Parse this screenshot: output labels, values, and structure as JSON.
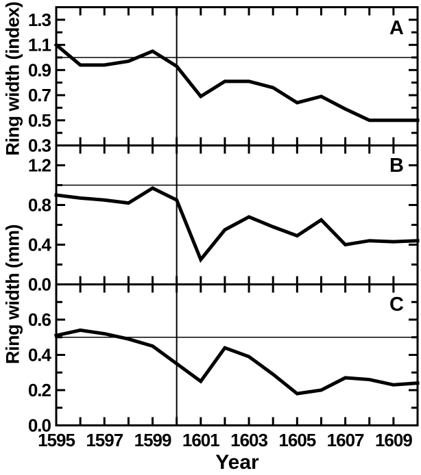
{
  "figure": {
    "background_color": "#ffffff",
    "line_color": "#000000"
  },
  "x_axis": {
    "label": "Year",
    "xlim": [
      1595,
      1610
    ],
    "tick_years": [
      1595,
      1596,
      1597,
      1598,
      1599,
      1600,
      1601,
      1602,
      1603,
      1604,
      1605,
      1606,
      1607,
      1608,
      1609,
      1610
    ],
    "labeled_ticks": [
      1595,
      1597,
      1599,
      1601,
      1603,
      1605,
      1607,
      1609
    ]
  },
  "y_axis_labels": [
    {
      "text": "Ring width (index)",
      "applies_to": "panel A"
    },
    {
      "text": "Ring width (mm)",
      "applies_to": "panels B and C"
    }
  ],
  "chart_data": [
    {
      "type": "line",
      "panel_label": "A",
      "y_unit": "index",
      "x": [
        1595,
        1596,
        1597,
        1598,
        1599,
        1600,
        1601,
        1602,
        1603,
        1604,
        1605,
        1606,
        1607,
        1608,
        1609,
        1610
      ],
      "values": [
        1.1,
        0.94,
        0.94,
        0.97,
        1.05,
        0.93,
        0.69,
        0.81,
        0.81,
        0.76,
        0.64,
        0.69,
        0.59,
        0.5,
        0.5,
        0.5
      ],
      "ylim": [
        0.3,
        1.4
      ],
      "yticks_labeled": [
        1.3,
        1.1,
        0.9,
        0.7,
        0.5,
        0.3
      ],
      "yticks_minor": [
        0.4,
        0.6,
        0.8,
        1.0,
        1.2
      ],
      "reference_hline": 1.0,
      "reference_vline": 1600,
      "grid": false,
      "legend": false
    },
    {
      "type": "line",
      "panel_label": "B",
      "y_unit": "mm",
      "x": [
        1595,
        1596,
        1597,
        1598,
        1599,
        1600,
        1601,
        1602,
        1603,
        1604,
        1605,
        1606,
        1607,
        1608,
        1609,
        1610
      ],
      "values": [
        0.9,
        0.87,
        0.85,
        0.82,
        0.97,
        0.85,
        0.25,
        0.55,
        0.68,
        0.58,
        0.49,
        0.65,
        0.4,
        0.44,
        0.43,
        0.44
      ],
      "ylim": [
        0.0,
        1.4
      ],
      "yticks_labeled": [
        1.2,
        0.8,
        0.4,
        0.0
      ],
      "yticks_minor": [
        0.2,
        0.6,
        1.0
      ],
      "reference_hline": 1.0,
      "reference_vline": 1600,
      "grid": false,
      "legend": false
    },
    {
      "type": "line",
      "panel_label": "C",
      "y_unit": "mm",
      "x": [
        1595,
        1596,
        1597,
        1598,
        1599,
        1600,
        1601,
        1602,
        1603,
        1604,
        1605,
        1606,
        1607,
        1608,
        1609,
        1610
      ],
      "values": [
        0.51,
        0.54,
        0.52,
        0.49,
        0.45,
        0.35,
        0.25,
        0.44,
        0.39,
        0.29,
        0.18,
        0.2,
        0.27,
        0.26,
        0.23,
        0.24
      ],
      "ylim": [
        0.0,
        0.8
      ],
      "yticks_labeled": [
        0.6,
        0.4,
        0.2,
        0.0
      ],
      "yticks_minor": [
        0.1,
        0.3,
        0.5,
        0.7
      ],
      "reference_hline": 0.5,
      "reference_vline": 1600,
      "grid": false,
      "legend": false
    }
  ]
}
